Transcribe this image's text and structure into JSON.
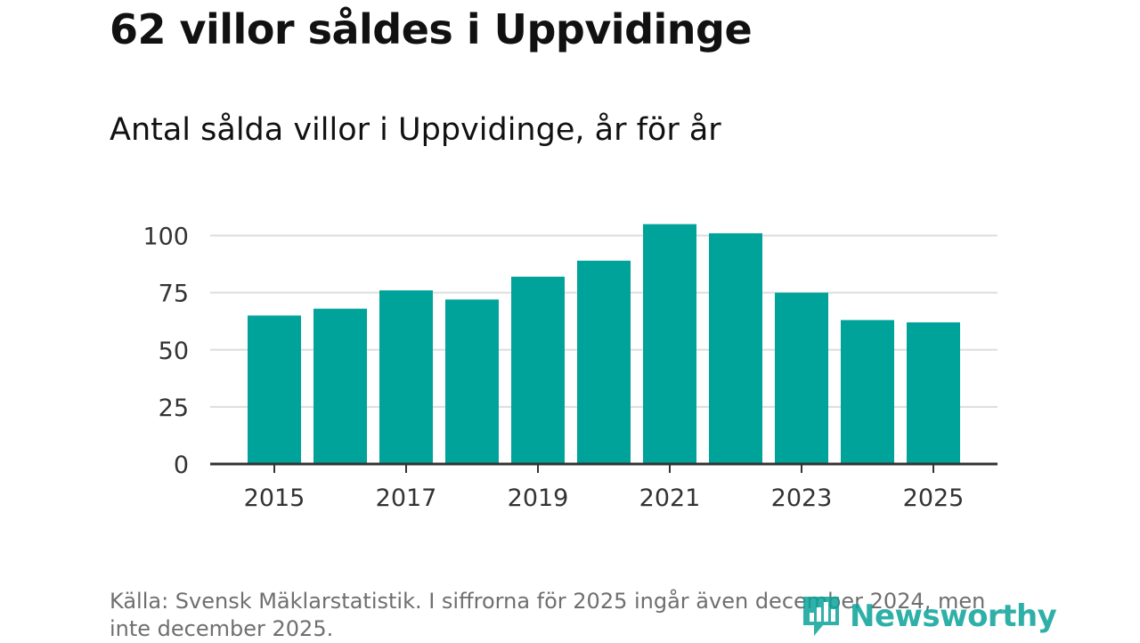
{
  "headline": "62 villor såldes i Uppvidinge",
  "chart_data": {
    "type": "bar",
    "title": "Antal sålda villor i Uppvidinge, år för år",
    "xlabel": "",
    "ylabel": "",
    "categories": [
      "2015",
      "2016",
      "2017",
      "2018",
      "2019",
      "2020",
      "2021",
      "2022",
      "2023",
      "2024",
      "2025"
    ],
    "values": [
      65,
      68,
      76,
      72,
      82,
      89,
      105,
      101,
      75,
      63,
      62
    ],
    "x_tick_labels": [
      "2015",
      "2017",
      "2019",
      "2021",
      "2023",
      "2025"
    ],
    "y_ticks": [
      0,
      25,
      50,
      75,
      100
    ],
    "ylim": [
      0,
      105
    ],
    "grid": true,
    "bar_color": "#00a39a"
  },
  "footer": {
    "source": "Källa: Svensk Mäklarstatistik. I siffrorna för 2025 ingår även december 2024, men inte december 2025."
  },
  "logo": {
    "text": "Newsworthy",
    "icon": "newsworthy-logo-icon",
    "color": "#0aa39a"
  }
}
